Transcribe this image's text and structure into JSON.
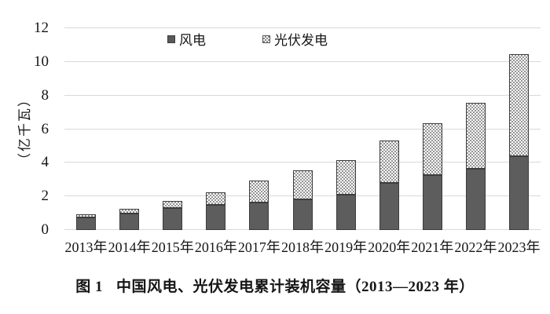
{
  "figure": {
    "caption_label": "图 1",
    "caption_title": "中国风电、光伏发电累计装机容量（2013—2023 年）"
  },
  "chart_data": {
    "type": "bar",
    "stacked": true,
    "title": "",
    "ylabel": "（亿千瓦）",
    "categories": [
      "2013年",
      "2014年",
      "2015年",
      "2016年",
      "2017年",
      "2018年",
      "2019年",
      "2020年",
      "2021年",
      "2022年",
      "2023年"
    ],
    "series": [
      {
        "name": "风电",
        "fill": "solid",
        "color": "#5d5d5d",
        "values": [
          0.77,
          0.97,
          1.31,
          1.49,
          1.64,
          1.84,
          2.1,
          2.82,
          3.28,
          3.65,
          4.41
        ]
      },
      {
        "name": "光伏发电",
        "fill": "checker-pattern",
        "color": "#949494",
        "values": [
          0.19,
          0.28,
          0.43,
          0.77,
          1.3,
          1.75,
          2.05,
          2.53,
          3.07,
          3.93,
          6.09
        ]
      }
    ],
    "y_ticks": [
      0,
      2,
      4,
      6,
      8,
      10,
      12
    ],
    "ylim": [
      0,
      12
    ],
    "grid": true,
    "grid_color": "#d9d9d9",
    "legend_position": "top-center"
  }
}
